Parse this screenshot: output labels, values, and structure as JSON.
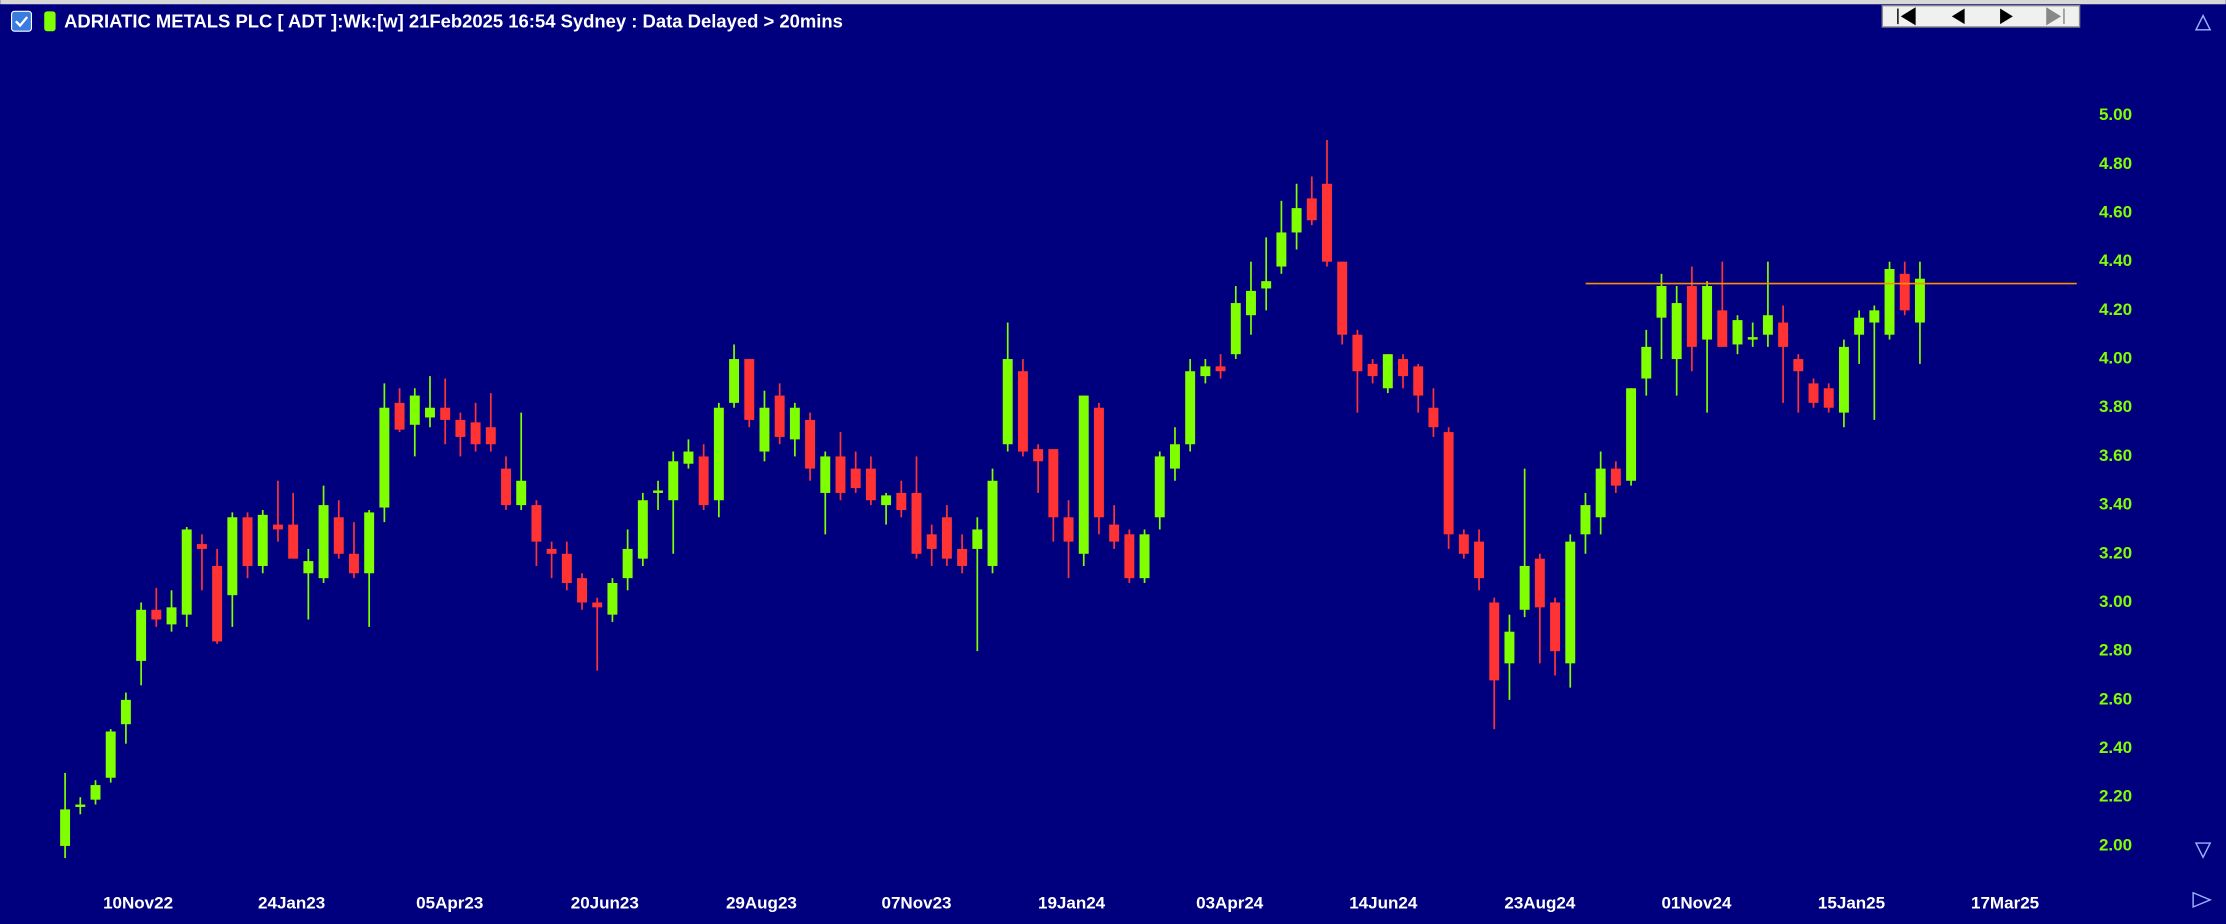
{
  "chart_data": {
    "type": "candlestick",
    "title": "ADRIATIC METALS PLC [ ADT ]:Wk:[w]  21Feb2025 16:54 Sydney : Data Delayed > 20mins",
    "up_color": "#80ff00",
    "down_color": "#ff3333",
    "background": "#00007f",
    "open": [
      2.0,
      2.16,
      2.19,
      2.28,
      2.5,
      2.76,
      2.97,
      2.91,
      2.95,
      3.24,
      3.15,
      3.03,
      3.35,
      3.15,
      3.32,
      3.32,
      3.12,
      3.1,
      3.35,
      3.2,
      3.12,
      3.39,
      3.82,
      3.73,
      3.76,
      3.8,
      3.75,
      3.74,
      3.72,
      3.55,
      3.4,
      3.4,
      3.22,
      3.2,
      3.1,
      3.0,
      2.95,
      3.1,
      3.18,
      3.45,
      3.42,
      3.57,
      3.6,
      3.42,
      3.82,
      4.0,
      3.62,
      3.85,
      3.67,
      3.75,
      3.45,
      3.6,
      3.55,
      3.55,
      3.4,
      3.45,
      3.45,
      3.28,
      3.35,
      3.22,
      3.22,
      3.15,
      3.65,
      3.95,
      3.63,
      3.63,
      3.35,
      3.2,
      3.8,
      3.32,
      3.28,
      3.1,
      3.35,
      3.55,
      3.65,
      3.93,
      3.97,
      4.02,
      4.18,
      4.29,
      4.38,
      4.52,
      4.66,
      4.72,
      4.4,
      4.1,
      3.98,
      3.88,
      4.0,
      3.97,
      3.8,
      3.7,
      3.28,
      3.25,
      3.0,
      2.75,
      2.97,
      3.18,
      3.0,
      2.75,
      3.28,
      3.35,
      3.55,
      3.5,
      3.92,
      4.17,
      4.0,
      4.3,
      4.08,
      4.2,
      4.06,
      4.08,
      4.1,
      4.15,
      4.0,
      3.9,
      3.88,
      3.78,
      4.1,
      4.15,
      4.1,
      4.35,
      4.15
    ],
    "high": [
      2.3,
      2.2,
      2.27,
      2.48,
      2.63,
      3.0,
      3.06,
      3.05,
      3.31,
      3.28,
      3.22,
      3.37,
      3.37,
      3.38,
      3.5,
      3.45,
      3.22,
      3.48,
      3.42,
      3.33,
      3.38,
      3.9,
      3.88,
      3.88,
      3.93,
      3.92,
      3.78,
      3.82,
      3.86,
      3.6,
      3.78,
      3.42,
      3.25,
      3.25,
      3.12,
      3.02,
      3.1,
      3.3,
      3.45,
      3.5,
      3.62,
      3.67,
      3.65,
      3.82,
      4.06,
      4.0,
      3.87,
      3.9,
      3.82,
      3.78,
      3.62,
      3.7,
      3.62,
      3.6,
      3.45,
      3.5,
      3.6,
      3.32,
      3.4,
      3.28,
      3.35,
      3.55,
      4.15,
      4.0,
      3.65,
      3.63,
      3.42,
      3.85,
      3.82,
      3.4,
      3.3,
      3.3,
      3.62,
      3.72,
      4.0,
      4.0,
      4.02,
      4.3,
      4.4,
      4.5,
      4.65,
      4.72,
      4.75,
      4.9,
      4.4,
      4.12,
      4.0,
      4.02,
      4.02,
      3.98,
      3.88,
      3.72,
      3.3,
      3.3,
      3.02,
      2.95,
      3.55,
      3.2,
      3.02,
      3.28,
      3.45,
      3.62,
      3.58,
      3.88,
      4.12,
      4.35,
      4.3,
      4.38,
      4.32,
      4.4,
      4.18,
      4.15,
      4.4,
      4.22,
      4.02,
      3.92,
      3.9,
      4.08,
      4.2,
      4.22,
      4.4,
      4.4,
      4.4
    ],
    "low": [
      1.95,
      2.13,
      2.17,
      2.26,
      2.42,
      2.66,
      2.9,
      2.88,
      2.9,
      3.05,
      2.83,
      2.9,
      3.1,
      3.12,
      3.25,
      3.18,
      2.93,
      3.08,
      3.18,
      3.1,
      2.9,
      3.33,
      3.7,
      3.6,
      3.72,
      3.65,
      3.6,
      3.62,
      3.62,
      3.38,
      3.38,
      3.15,
      3.1,
      3.05,
      2.97,
      2.72,
      2.92,
      3.05,
      3.15,
      3.38,
      3.2,
      3.55,
      3.38,
      3.35,
      3.8,
      3.72,
      3.58,
      3.65,
      3.6,
      3.5,
      3.28,
      3.42,
      3.45,
      3.4,
      3.32,
      3.35,
      3.18,
      3.15,
      3.15,
      3.12,
      2.8,
      3.12,
      3.62,
      3.6,
      3.45,
      3.25,
      3.1,
      3.15,
      3.28,
      3.22,
      3.08,
      3.08,
      3.3,
      3.5,
      3.62,
      3.9,
      3.92,
      4.0,
      4.1,
      4.2,
      4.35,
      4.45,
      4.55,
      4.38,
      4.06,
      3.78,
      3.9,
      3.86,
      3.88,
      3.78,
      3.68,
      3.22,
      3.18,
      3.05,
      2.48,
      2.6,
      2.94,
      2.75,
      2.7,
      2.65,
      3.2,
      3.28,
      3.45,
      3.48,
      3.85,
      4.0,
      3.85,
      3.95,
      3.78,
      4.05,
      4.02,
      4.05,
      4.05,
      3.82,
      3.78,
      3.8,
      3.78,
      3.72,
      3.98,
      3.75,
      4.08,
      4.18,
      3.98
    ],
    "close": [
      2.15,
      2.17,
      2.25,
      2.47,
      2.6,
      2.97,
      2.93,
      2.98,
      3.3,
      3.22,
      2.84,
      3.35,
      3.15,
      3.36,
      3.3,
      3.18,
      3.17,
      3.4,
      3.2,
      3.12,
      3.37,
      3.8,
      3.71,
      3.85,
      3.8,
      3.75,
      3.68,
      3.65,
      3.65,
      3.4,
      3.5,
      3.25,
      3.2,
      3.08,
      3.0,
      2.98,
      3.08,
      3.22,
      3.42,
      3.46,
      3.58,
      3.62,
      3.4,
      3.8,
      4.0,
      3.75,
      3.8,
      3.68,
      3.8,
      3.55,
      3.6,
      3.45,
      3.47,
      3.42,
      3.44,
      3.38,
      3.2,
      3.22,
      3.18,
      3.15,
      3.3,
      3.5,
      4.0,
      3.62,
      3.58,
      3.35,
      3.25,
      3.85,
      3.35,
      3.25,
      3.1,
      3.28,
      3.6,
      3.65,
      3.95,
      3.97,
      3.95,
      4.23,
      4.28,
      4.32,
      4.52,
      4.62,
      4.57,
      4.4,
      4.1,
      3.95,
      3.93,
      4.02,
      3.93,
      3.85,
      3.72,
      3.28,
      3.2,
      3.1,
      2.68,
      2.88,
      3.15,
      2.98,
      2.8,
      3.25,
      3.4,
      3.55,
      3.48,
      3.88,
      4.05,
      4.3,
      4.23,
      4.05,
      4.3,
      4.05,
      4.16,
      4.09,
      4.18,
      4.05,
      3.95,
      3.82,
      3.8,
      4.05,
      4.17,
      4.2,
      4.37,
      4.2,
      4.33
    ],
    "xlim": [
      -3.8,
      132.5
    ],
    "xticks": [
      {
        "value": 4.8,
        "label": "10Nov22"
      },
      {
        "value": 14.9,
        "label": "24Jan23"
      },
      {
        "value": 25.3,
        "label": "05Apr23"
      },
      {
        "value": 35.5,
        "label": "20Jun23"
      },
      {
        "value": 45.8,
        "label": "29Aug23"
      },
      {
        "value": 56.0,
        "label": "07Nov23"
      },
      {
        "value": 66.2,
        "label": "19Jan24"
      },
      {
        "value": 76.6,
        "label": "03Apr24"
      },
      {
        "value": 86.7,
        "label": "14Jun24"
      },
      {
        "value": 97.0,
        "label": "23Aug24"
      },
      {
        "value": 107.3,
        "label": "01Nov24"
      },
      {
        "value": 117.5,
        "label": "15Jan25"
      },
      {
        "value": 127.6,
        "label": "17Mar25"
      }
    ],
    "ylim": [
      1.86,
      5.3
    ],
    "yticks": [
      {
        "value": 2,
        "label": "2.00"
      },
      {
        "value": 2.2,
        "label": "2.20"
      },
      {
        "value": 2.4,
        "label": "2.40"
      },
      {
        "value": 2.6,
        "label": "2.60"
      },
      {
        "value": 2.8,
        "label": "2.80"
      },
      {
        "value": 3,
        "label": "3.00"
      },
      {
        "value": 3.2,
        "label": "3.20"
      },
      {
        "value": 3.4,
        "label": "3.40"
      },
      {
        "value": 3.6,
        "label": "3.60"
      },
      {
        "value": 3.8,
        "label": "3.80"
      },
      {
        "value": 4,
        "label": "4.00"
      },
      {
        "value": 4.2,
        "label": "4.20"
      },
      {
        "value": 4.4,
        "label": "4.40"
      },
      {
        "value": 4.6,
        "label": "4.60"
      },
      {
        "value": 4.8,
        "label": "4.80"
      },
      {
        "value": 5,
        "label": "5.00"
      }
    ],
    "reference_line": {
      "value": 4.31,
      "color": "#ff8c00"
    }
  }
}
